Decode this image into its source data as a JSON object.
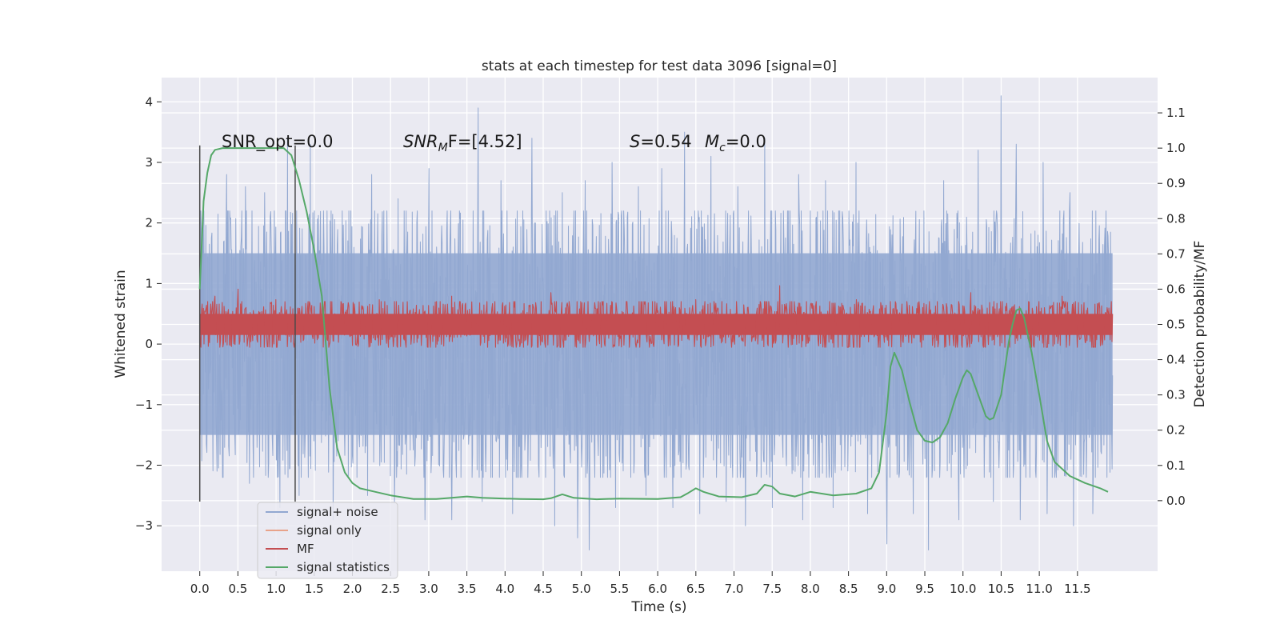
{
  "chart_data": {
    "type": "line",
    "title": "stats at each timestep for test data 3096 [signal=0]",
    "xlabel": "Time (s)",
    "ylabel_left": "Whitened strain",
    "ylabel_right": "Detection probability/MF",
    "xlim": [
      -0.5,
      12.55
    ],
    "ylim_left": [
      -3.75,
      4.4
    ],
    "ylim_right": [
      -0.2,
      1.2
    ],
    "x_ticks": [
      0.0,
      0.5,
      1.0,
      1.5,
      2.0,
      2.5,
      3.0,
      3.5,
      4.0,
      4.5,
      5.0,
      5.5,
      6.0,
      6.5,
      7.0,
      7.5,
      8.0,
      8.5,
      9.0,
      9.5,
      10.0,
      10.5,
      11.0,
      11.5
    ],
    "x_tick_labels": [
      "0.0",
      "0.5",
      "1.0",
      "1.5",
      "2.0",
      "2.5",
      "3.0",
      "3.5",
      "4.0",
      "4.5",
      "5.0",
      "5.5",
      "6.0",
      "6.5",
      "7.0",
      "7.5",
      "8.0",
      "8.5",
      "9.0",
      "9.5",
      "10.0",
      "10.5",
      "11.0",
      "11.5"
    ],
    "y_left_ticks": [
      -3,
      -2,
      -1,
      0,
      1,
      2,
      3,
      4
    ],
    "y_left_tick_labels": [
      "−3",
      "−2",
      "−1",
      "0",
      "1",
      "2",
      "3",
      "4"
    ],
    "y_right_ticks": [
      0.0,
      0.1,
      0.2,
      0.3,
      0.4,
      0.5,
      0.6,
      0.7,
      0.8,
      0.9,
      1.0,
      1.1
    ],
    "y_right_tick_labels": [
      "0.0",
      "0.1",
      "0.2",
      "0.3",
      "0.4",
      "0.5",
      "0.6",
      "0.7",
      "0.8",
      "0.9",
      "1.0",
      "1.1"
    ],
    "grid": true,
    "legend_position": "lower-left",
    "annotations": {
      "snr_opt": "SNR_opt=0.0",
      "snr_mf_prefix": "SNR",
      "snr_mf_sub": "M",
      "snr_mf_suffix": "F=[4.52]",
      "s_label": "S",
      "s_value": "=0.54",
      "mc_label": "M",
      "mc_sub": "c",
      "mc_value": "=0.0"
    },
    "vertical_markers_x": [
      0.0,
      1.25
    ],
    "series": [
      {
        "name": "signal+ noise",
        "axis": "left",
        "color": "#92a8d1",
        "style": "noise",
        "x_range": [
          0.0,
          11.96
        ],
        "spikes_high": [
          [
            0.05,
            2.2
          ],
          [
            0.35,
            2.8
          ],
          [
            0.6,
            2.6
          ],
          [
            0.85,
            2.5
          ],
          [
            1.15,
            3.4
          ],
          [
            1.45,
            3.3
          ],
          [
            1.75,
            2.0
          ],
          [
            2.25,
            2.8
          ],
          [
            2.6,
            2.4
          ],
          [
            3.0,
            2.9
          ],
          [
            3.3,
            2.3
          ],
          [
            3.65,
            3.9
          ],
          [
            3.95,
            2.7
          ],
          [
            4.35,
            3.4
          ],
          [
            4.75,
            2.5
          ],
          [
            5.05,
            2.7
          ],
          [
            5.4,
            3.0
          ],
          [
            5.75,
            2.6
          ],
          [
            6.05,
            2.9
          ],
          [
            6.35,
            3.5
          ],
          [
            6.7,
            3.1
          ],
          [
            7.05,
            2.6
          ],
          [
            7.4,
            3.4
          ],
          [
            7.85,
            2.8
          ],
          [
            8.2,
            2.7
          ],
          [
            8.6,
            3.0
          ],
          [
            9.0,
            2.9
          ],
          [
            9.35,
            3.0
          ],
          [
            9.75,
            2.7
          ],
          [
            10.2,
            3.2
          ],
          [
            10.5,
            4.1
          ],
          [
            10.7,
            3.3
          ],
          [
            11.05,
            3.0
          ],
          [
            11.4,
            2.5
          ],
          [
            11.7,
            2.7
          ]
        ],
        "spikes_low": [
          [
            0.0,
            -2.6
          ],
          [
            0.3,
            -2.2
          ],
          [
            0.65,
            -2.3
          ],
          [
            1.05,
            -2.7
          ],
          [
            1.3,
            -2.5
          ],
          [
            1.75,
            -2.9
          ],
          [
            2.2,
            -2.5
          ],
          [
            2.55,
            -2.6
          ],
          [
            2.95,
            -2.9
          ],
          [
            3.3,
            -2.9
          ],
          [
            3.7,
            -2.6
          ],
          [
            4.1,
            -2.8
          ],
          [
            4.65,
            -3.0
          ],
          [
            4.95,
            -3.2
          ],
          [
            5.1,
            -3.4
          ],
          [
            5.45,
            -2.7
          ],
          [
            5.85,
            -2.5
          ],
          [
            6.2,
            -2.7
          ],
          [
            6.55,
            -2.8
          ],
          [
            6.9,
            -2.6
          ],
          [
            7.15,
            -3.0
          ],
          [
            7.5,
            -2.7
          ],
          [
            7.9,
            -2.9
          ],
          [
            8.3,
            -2.7
          ],
          [
            8.75,
            -2.8
          ],
          [
            9.0,
            -3.3
          ],
          [
            9.35,
            -2.8
          ],
          [
            9.55,
            -3.4
          ],
          [
            9.95,
            -2.9
          ],
          [
            10.4,
            -2.6
          ],
          [
            10.75,
            -2.9
          ],
          [
            11.1,
            -2.8
          ],
          [
            11.45,
            -3.0
          ],
          [
            11.7,
            -2.8
          ]
        ]
      },
      {
        "name": "signal only",
        "axis": "left",
        "color": "#e8a38a",
        "style": "none"
      },
      {
        "name": "MF",
        "axis": "right",
        "color": "#c44e52",
        "style": "noise",
        "x_range": [
          0.0,
          11.96
        ],
        "center": 0.5,
        "spikes_high": [
          [
            0.2,
            0.58
          ],
          [
            0.5,
            0.6
          ],
          [
            1.0,
            0.57
          ],
          [
            2.35,
            0.57
          ],
          [
            3.3,
            0.58
          ],
          [
            4.6,
            0.59
          ],
          [
            6.5,
            0.57
          ],
          [
            7.6,
            0.61
          ],
          [
            8.6,
            0.57
          ],
          [
            10.1,
            0.59
          ],
          [
            11.3,
            0.58
          ]
        ],
        "spikes_low": [
          [
            0.4,
            0.44
          ],
          [
            2.0,
            0.44
          ],
          [
            5.2,
            0.44
          ],
          [
            9.6,
            0.44
          ]
        ]
      },
      {
        "name": "signal statistics",
        "axis": "right",
        "color": "#55a868",
        "style": "line",
        "x": [
          0.0,
          0.05,
          0.1,
          0.15,
          0.2,
          0.3,
          0.5,
          0.8,
          1.0,
          1.1,
          1.2,
          1.3,
          1.4,
          1.5,
          1.6,
          1.7,
          1.8,
          1.9,
          2.0,
          2.1,
          2.3,
          2.5,
          2.8,
          3.1,
          3.3,
          3.5,
          3.7,
          4.0,
          4.2,
          4.5,
          4.6,
          4.75,
          4.9,
          5.2,
          5.5,
          6.0,
          6.3,
          6.4,
          6.5,
          6.6,
          6.8,
          7.1,
          7.3,
          7.4,
          7.5,
          7.6,
          7.8,
          8.0,
          8.3,
          8.6,
          8.8,
          8.9,
          9.0,
          9.05,
          9.1,
          9.2,
          9.3,
          9.4,
          9.5,
          9.6,
          9.7,
          9.8,
          9.9,
          10.0,
          10.05,
          10.1,
          10.2,
          10.3,
          10.35,
          10.4,
          10.5,
          10.6,
          10.65,
          10.7,
          10.75,
          10.8,
          10.9,
          11.0,
          11.1,
          11.2,
          11.4,
          11.6,
          11.8,
          11.9
        ],
        "y": [
          0.6,
          0.85,
          0.93,
          0.98,
          0.995,
          1.0,
          1.0,
          1.0,
          1.0,
          1.0,
          0.98,
          0.91,
          0.82,
          0.71,
          0.58,
          0.32,
          0.15,
          0.08,
          0.05,
          0.035,
          0.025,
          0.015,
          0.005,
          0.005,
          0.008,
          0.012,
          0.008,
          0.006,
          0.005,
          0.004,
          0.007,
          0.018,
          0.008,
          0.004,
          0.006,
          0.005,
          0.01,
          0.022,
          0.035,
          0.025,
          0.012,
          0.01,
          0.02,
          0.045,
          0.04,
          0.02,
          0.012,
          0.025,
          0.015,
          0.02,
          0.035,
          0.08,
          0.25,
          0.38,
          0.42,
          0.37,
          0.28,
          0.2,
          0.17,
          0.165,
          0.18,
          0.22,
          0.29,
          0.35,
          0.37,
          0.36,
          0.3,
          0.24,
          0.23,
          0.235,
          0.3,
          0.45,
          0.5,
          0.54,
          0.545,
          0.52,
          0.42,
          0.3,
          0.17,
          0.11,
          0.07,
          0.05,
          0.035,
          0.025
        ]
      }
    ]
  }
}
